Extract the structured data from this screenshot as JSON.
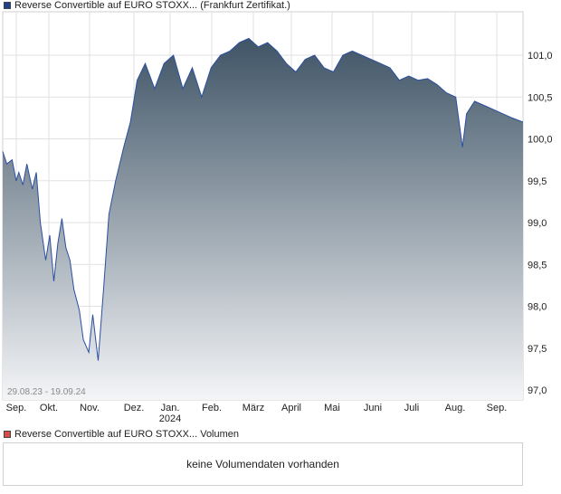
{
  "legend": {
    "price_label": "Reverse Convertible auf EURO STOXX... (Frankfurt Zertifikat.)",
    "volume_label": "Reverse Convertible auf EURO STOXX... Volumen",
    "price_color": "#1f3f8f",
    "volume_color": "#d94b4b"
  },
  "volume": {
    "message": "keine Volumendaten vorhanden"
  },
  "chart_data": {
    "type": "area",
    "date_range_label": "29.08.23 - 19.09.24",
    "x_ticks": [
      "Sep.",
      "Okt.",
      "Nov.",
      "Dez.",
      "Jan.",
      "Feb.",
      "März",
      "April",
      "Mai",
      "Juni",
      "Juli",
      "Aug.",
      "Sep."
    ],
    "x_year_label": "2024",
    "y_ticks": [
      "101,0",
      "100,5",
      "100,0",
      "99,5",
      "99,0",
      "98,5",
      "98,0",
      "97,5",
      "97,0"
    ],
    "ylim": [
      97.0,
      101.0
    ],
    "grid": true,
    "line_color": "#2b4fa0",
    "fill_top_color": "#3f5466",
    "fill_bottom_color": "#f4f5f7",
    "x": [
      "2023-08-29",
      "2023-09-01",
      "2023-09-05",
      "2023-09-08",
      "2023-09-10",
      "2023-09-13",
      "2023-09-16",
      "2023-09-20",
      "2023-09-23",
      "2023-09-26",
      "2023-09-30",
      "2023-10-03",
      "2023-10-06",
      "2023-10-09",
      "2023-10-12",
      "2023-10-15",
      "2023-10-18",
      "2023-10-21",
      "2023-10-25",
      "2023-10-28",
      "2023-11-01",
      "2023-11-04",
      "2023-11-08",
      "2023-11-12",
      "2023-11-16",
      "2023-11-21",
      "2023-11-27",
      "2023-12-02",
      "2023-12-07",
      "2023-12-13",
      "2023-12-20",
      "2023-12-27",
      "2024-01-03",
      "2024-01-10",
      "2024-01-17",
      "2024-01-24",
      "2024-01-31",
      "2024-02-07",
      "2024-02-14",
      "2024-02-21",
      "2024-02-28",
      "2024-03-06",
      "2024-03-13",
      "2024-03-20",
      "2024-03-27",
      "2024-04-03",
      "2024-04-10",
      "2024-04-17",
      "2024-04-24",
      "2024-05-01",
      "2024-05-08",
      "2024-05-15",
      "2024-05-22",
      "2024-05-29",
      "2024-06-05",
      "2024-06-12",
      "2024-06-19",
      "2024-06-26",
      "2024-07-03",
      "2024-07-10",
      "2024-07-17",
      "2024-07-24",
      "2024-07-31",
      "2024-08-05",
      "2024-08-08",
      "2024-08-14",
      "2024-08-21",
      "2024-08-28",
      "2024-09-04",
      "2024-09-11",
      "2024-09-19"
    ],
    "series": [
      {
        "values": [
          99.85,
          99.7,
          99.75,
          99.5,
          99.6,
          99.45,
          99.7,
          99.4,
          99.6,
          99.0,
          98.55,
          98.85,
          98.3,
          98.75,
          99.05,
          98.7,
          98.55,
          98.2,
          97.95,
          97.6,
          97.45,
          97.9,
          97.35,
          98.2,
          99.1,
          99.5,
          99.9,
          100.2,
          100.7,
          100.9,
          100.6,
          100.9,
          101.0,
          100.6,
          100.85,
          100.5,
          100.85,
          101.0,
          101.05,
          101.15,
          101.2,
          101.1,
          101.15,
          101.05,
          100.9,
          100.8,
          100.95,
          101.0,
          100.85,
          100.8,
          101.0,
          101.05,
          101.0,
          100.95,
          100.9,
          100.85,
          100.7,
          100.75,
          100.7,
          100.72,
          100.65,
          100.55,
          100.5,
          99.9,
          100.3,
          100.45,
          100.4,
          100.35,
          100.3,
          100.25,
          100.2
        ]
      }
    ]
  }
}
